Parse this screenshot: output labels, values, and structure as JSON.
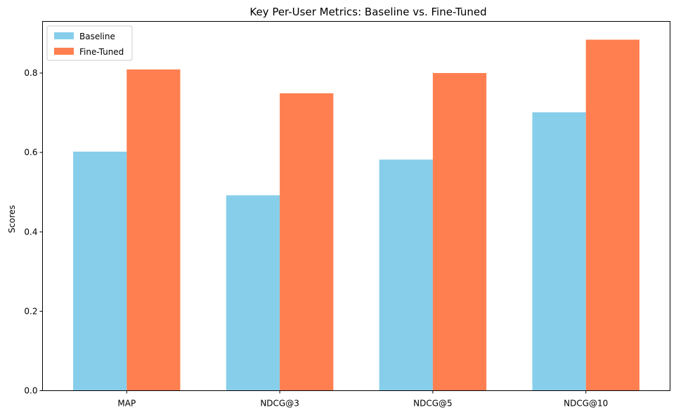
{
  "chart_data": {
    "type": "bar",
    "title": "Key Per-User Metrics: Baseline vs. Fine-Tuned",
    "xlabel": "",
    "ylabel": "Scores",
    "categories": [
      "MAP",
      "NDCG@3",
      "NDCG@5",
      "NDCG@10"
    ],
    "series": [
      {
        "name": "Baseline",
        "color": "#87CEEB",
        "values": [
          0.602,
          0.492,
          0.582,
          0.701
        ]
      },
      {
        "name": "Fine-Tuned",
        "color": "#FF7F50",
        "values": [
          0.809,
          0.749,
          0.8,
          0.884
        ]
      }
    ],
    "ylim": [
      0,
      0.93
    ],
    "yticks": [
      0.0,
      0.2,
      0.4,
      0.6,
      0.8
    ],
    "ytick_labels": [
      "0.0",
      "0.2",
      "0.4",
      "0.6",
      "0.8"
    ],
    "grid": false,
    "legend_position": "top-left"
  }
}
